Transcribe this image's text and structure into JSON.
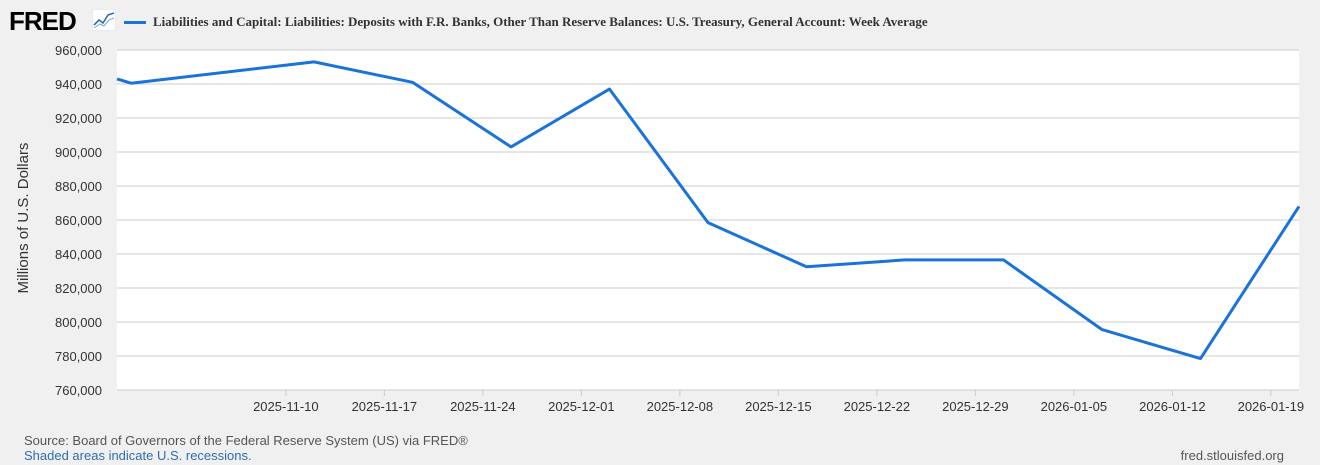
{
  "brand": {
    "logo_text": "FRED",
    "logo_icon": "trend-line-icon"
  },
  "colors": {
    "series": "#1a73d9",
    "plot_bg": "#ffffff",
    "grid": "#cccccc",
    "page_bg": "#f0f0f0",
    "link": "#2f6db2"
  },
  "footer": {
    "source": "Source: Board of Governors of the Federal Reserve System (US) via FRED®",
    "recessions": "Shaded areas indicate U.S. recessions.",
    "site": "fred.stlouisfed.org"
  },
  "chart_data": {
    "type": "line",
    "title": "",
    "xlabel": "",
    "ylabel": "Millions of U.S. Dollars",
    "series": [
      {
        "name": "Liabilities and Capital: Liabilities: Deposits with F.R. Banks, Other Than Reserve Balances: U.S. Treasury, General Account: Week Average",
        "x": [
          "2025-10-29",
          "2025-10-30",
          "2025-11-12",
          "2025-11-19",
          "2025-11-26",
          "2025-12-03",
          "2025-12-10",
          "2025-12-17",
          "2025-12-24",
          "2025-12-31",
          "2026-01-07",
          "2026-01-14",
          "2026-01-21"
        ],
        "values": [
          943000,
          940500,
          953000,
          941000,
          903000,
          937000,
          858500,
          832500,
          836500,
          836500,
          795500,
          778500,
          868000
        ]
      }
    ],
    "x_ticks": [
      "2025-11-10",
      "2025-11-17",
      "2025-11-24",
      "2025-12-01",
      "2025-12-08",
      "2025-12-15",
      "2025-12-22",
      "2025-12-29",
      "2026-01-05",
      "2026-01-12",
      "2026-01-19"
    ],
    "y_ticks": [
      760000,
      780000,
      800000,
      820000,
      840000,
      860000,
      880000,
      900000,
      920000,
      940000,
      960000
    ],
    "y_tick_labels": [
      "760,000",
      "780,000",
      "800,000",
      "820,000",
      "840,000",
      "860,000",
      "880,000",
      "900,000",
      "920,000",
      "940,000",
      "960,000"
    ],
    "xlim": [
      "2025-10-29",
      "2026-01-21"
    ],
    "ylim": [
      760000,
      960000
    ],
    "grid": true,
    "legend": "top-left"
  }
}
